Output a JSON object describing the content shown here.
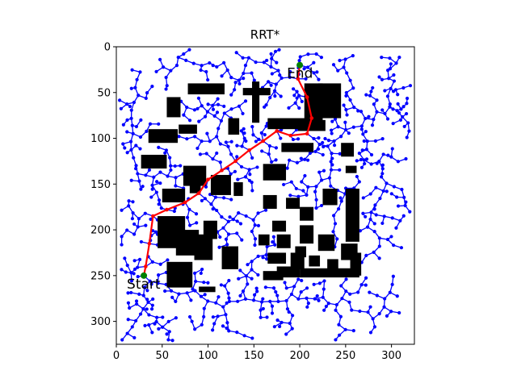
{
  "chart_data": {
    "type": "scatter",
    "title": "RRT*",
    "xlabel": "",
    "ylabel": "",
    "xlim": [
      0,
      325
    ],
    "ylim": [
      325,
      0
    ],
    "x_ticks": [
      0,
      50,
      100,
      150,
      200,
      250,
      300
    ],
    "y_ticks": [
      0,
      50,
      100,
      150,
      200,
      250,
      300
    ],
    "grid": false,
    "legend": "none",
    "colors": {
      "tree": "#0000ff",
      "path": "#ff0000",
      "obstacle": "#000000",
      "endpoint": "#008000"
    },
    "start": {
      "x": 30,
      "y": 250,
      "label": "Start"
    },
    "end": {
      "x": 200,
      "y": 20,
      "label": "End"
    },
    "path": [
      [
        30,
        250
      ],
      [
        32,
        240
      ],
      [
        36,
        215
      ],
      [
        40,
        185
      ],
      [
        55,
        178
      ],
      [
        75,
        170
      ],
      [
        90,
        160
      ],
      [
        100,
        145
      ],
      [
        115,
        135
      ],
      [
        130,
        125
      ],
      [
        145,
        113
      ],
      [
        160,
        103
      ],
      [
        175,
        92
      ],
      [
        190,
        97
      ],
      [
        208,
        95
      ],
      [
        213,
        78
      ],
      [
        208,
        55
      ],
      [
        198,
        35
      ],
      [
        200,
        20
      ]
    ],
    "obstacles": [
      [
        55,
        55,
        15,
        22
      ],
      [
        78,
        40,
        40,
        12
      ],
      [
        148,
        38,
        8,
        45
      ],
      [
        138,
        45,
        30,
        8
      ],
      [
        205,
        40,
        20,
        45
      ],
      [
        220,
        40,
        25,
        38
      ],
      [
        35,
        90,
        32,
        15
      ],
      [
        68,
        85,
        20,
        10
      ],
      [
        122,
        78,
        12,
        18
      ],
      [
        165,
        78,
        45,
        12
      ],
      [
        198,
        80,
        30,
        12
      ],
      [
        180,
        105,
        35,
        10
      ],
      [
        27,
        118,
        28,
        15
      ],
      [
        73,
        130,
        25,
        22
      ],
      [
        103,
        140,
        22,
        22
      ],
      [
        128,
        148,
        10,
        15
      ],
      [
        160,
        128,
        25,
        18
      ],
      [
        245,
        105,
        14,
        15
      ],
      [
        250,
        130,
        12,
        8
      ],
      [
        50,
        155,
        25,
        15
      ],
      [
        80,
        150,
        12,
        10
      ],
      [
        160,
        162,
        15,
        15
      ],
      [
        185,
        165,
        15,
        12
      ],
      [
        225,
        155,
        16,
        18
      ],
      [
        250,
        155,
        15,
        58
      ],
      [
        45,
        185,
        30,
        35
      ],
      [
        65,
        200,
        25,
        28
      ],
      [
        85,
        205,
        20,
        28
      ],
      [
        95,
        190,
        15,
        20
      ],
      [
        115,
        218,
        18,
        25
      ],
      [
        170,
        190,
        15,
        12
      ],
      [
        200,
        175,
        15,
        15
      ],
      [
        200,
        195,
        15,
        20
      ],
      [
        155,
        205,
        12,
        12
      ],
      [
        175,
        205,
        15,
        15
      ],
      [
        195,
        218,
        12,
        12
      ],
      [
        220,
        205,
        18,
        18
      ],
      [
        245,
        215,
        18,
        18
      ],
      [
        165,
        225,
        20,
        12
      ],
      [
        190,
        225,
        15,
        18
      ],
      [
        210,
        228,
        12,
        12
      ],
      [
        230,
        232,
        12,
        12
      ],
      [
        175,
        240,
        25,
        12
      ],
      [
        200,
        242,
        65,
        10
      ],
      [
        255,
        225,
        12,
        25
      ],
      [
        55,
        235,
        28,
        28
      ],
      [
        90,
        262,
        18,
        6
      ],
      [
        160,
        245,
        22,
        10
      ]
    ],
    "tree_seed": 7,
    "tree_extent": [
      3,
      3,
      322,
      322
    ]
  }
}
